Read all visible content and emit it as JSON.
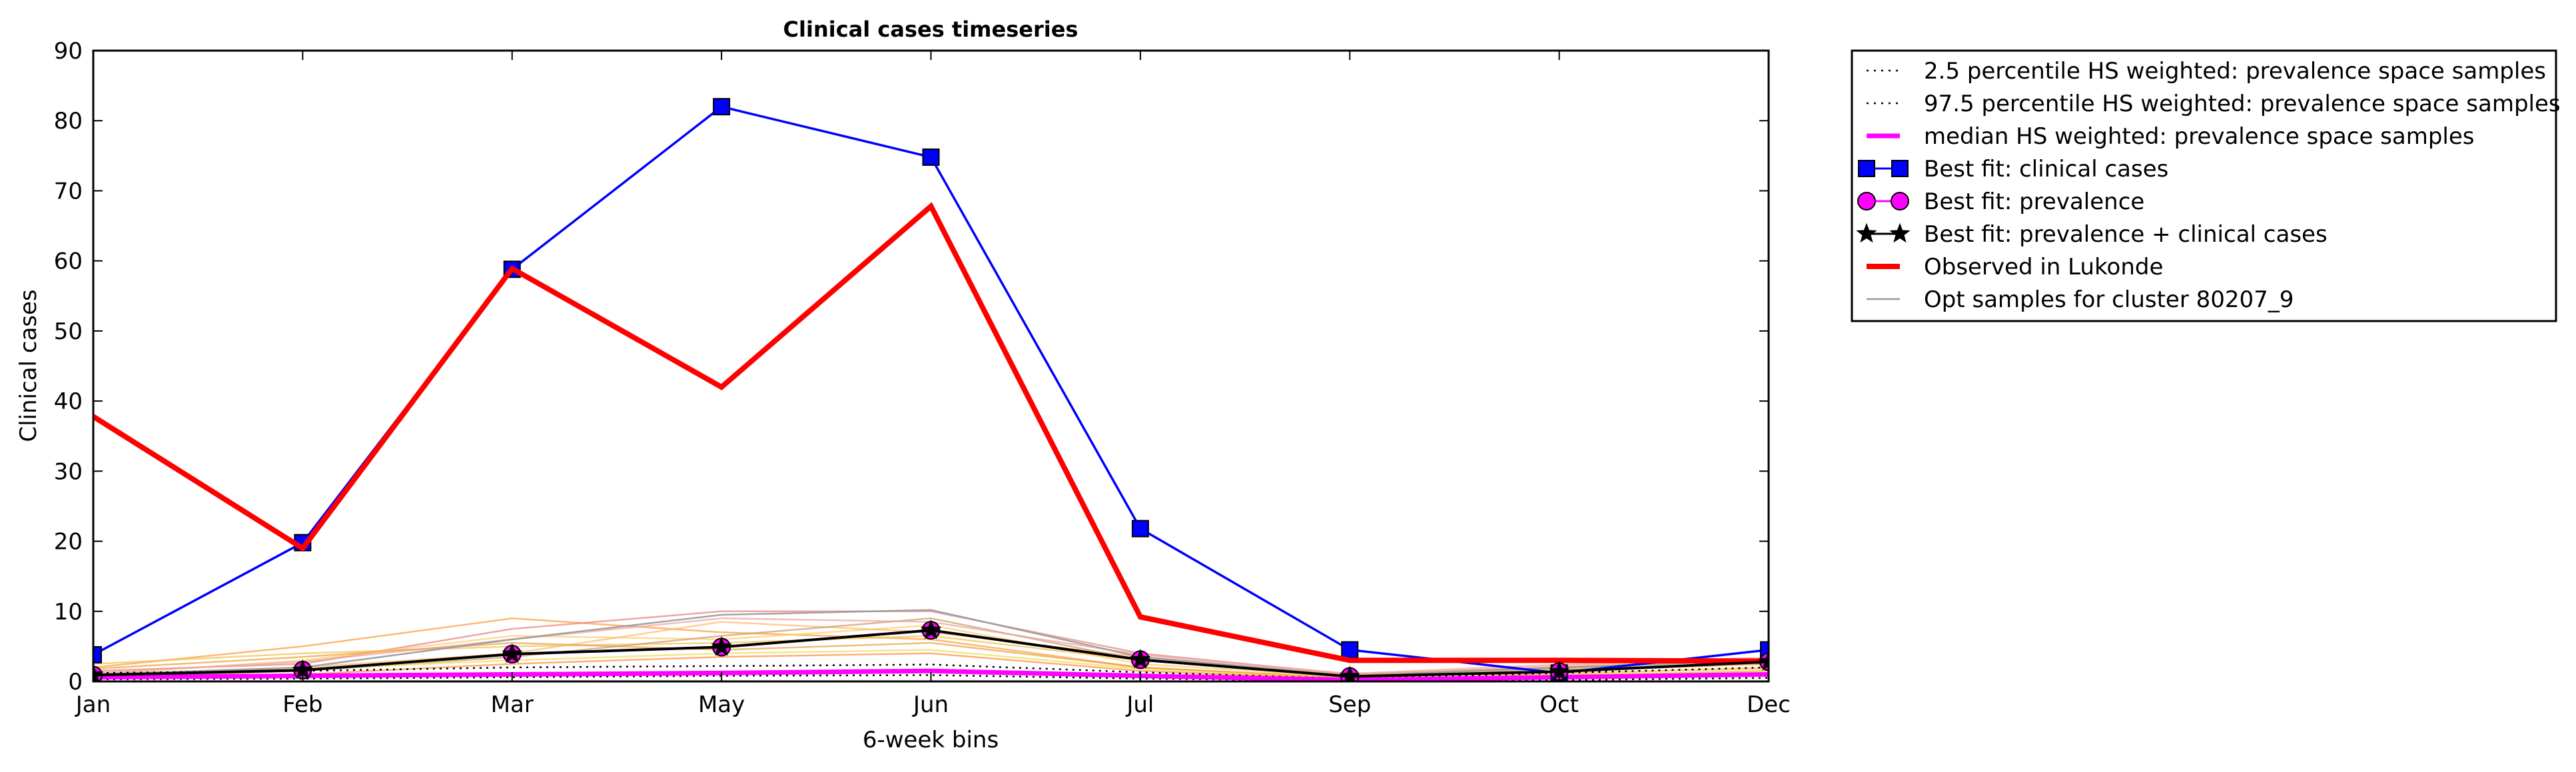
{
  "chart_data": {
    "type": "line",
    "title": "Clinical cases timeseries",
    "xlabel": "6-week bins",
    "ylabel": "Clinical cases",
    "categories": [
      "Jan",
      "Feb",
      "Mar",
      "May",
      "Jun",
      "Jul",
      "Sep",
      "Oct",
      "Dec"
    ],
    "ylim": [
      0,
      90
    ],
    "yticks": [
      0,
      10,
      20,
      30,
      40,
      50,
      60,
      70,
      80,
      90
    ],
    "grid": false,
    "legend_position": "outside-right",
    "series": [
      {
        "name": "2.5 percentile HS weighted: prevalence space samples",
        "style": "dotted",
        "color": "#000000",
        "values": [
          0.3,
          0.4,
          0.6,
          0.8,
          0.9,
          0.4,
          0.1,
          0.2,
          0.5
        ]
      },
      {
        "name": "97.5 percentile HS weighted: prevalence space samples",
        "style": "dotted",
        "color": "#000000",
        "values": [
          1.2,
          1.5,
          2.0,
          2.2,
          2.4,
          1.3,
          0.4,
          1.2,
          2.0
        ]
      },
      {
        "name": "median HS weighted: prevalence space samples",
        "style": "solid",
        "color": "#ff00ff",
        "values": [
          0.6,
          0.8,
          1.0,
          1.2,
          1.5,
          0.8,
          0.2,
          0.6,
          1.0
        ]
      },
      {
        "name": "Best fit: clinical cases",
        "style": "solid-square",
        "color": "#0000ff",
        "values": [
          3.8,
          19.8,
          58.8,
          82.0,
          74.8,
          21.8,
          4.5,
          1.2,
          4.5
        ]
      },
      {
        "name": "Best fit: prevalence",
        "style": "solid-circle",
        "color": "#ff00ff",
        "values": [
          0.9,
          1.6,
          3.9,
          4.9,
          7.3,
          3.1,
          0.7,
          1.4,
          2.8
        ]
      },
      {
        "name": "Best fit: prevalence + clinical cases",
        "style": "solid-star",
        "color": "#000000",
        "values": [
          0.9,
          1.6,
          3.9,
          4.9,
          7.3,
          3.1,
          0.7,
          1.4,
          2.8
        ]
      },
      {
        "name": "Observed in Lukonde",
        "style": "thick",
        "color": "#ff0000",
        "values": [
          37.8,
          19.0,
          58.9,
          42.0,
          67.8,
          9.2,
          3.0,
          3.0,
          2.9
        ]
      },
      {
        "name": "Opt samples for cluster 80207_9",
        "style": "thin",
        "color": "#999999",
        "values": [
          1.0,
          2.0,
          6.0,
          9.5,
          10.2,
          3.5,
          0.8,
          2.0,
          3.0
        ]
      }
    ],
    "sample_lines": [
      {
        "color": "#ff9933",
        "values": [
          2.0,
          5.0,
          9.0,
          7.0,
          6.0,
          2.0,
          0.5,
          1.5,
          2.5
        ]
      },
      {
        "color": "#e88080",
        "values": [
          1.5,
          2.5,
          7.5,
          10.0,
          10.0,
          4.0,
          1.0,
          2.0,
          3.0
        ]
      },
      {
        "color": "#f2c14e",
        "values": [
          2.5,
          4.0,
          5.0,
          5.5,
          6.5,
          3.0,
          0.8,
          1.0,
          2.0
        ]
      },
      {
        "color": "#ffcc66",
        "values": [
          1.0,
          3.0,
          6.5,
          6.0,
          8.0,
          2.5,
          0.6,
          1.2,
          1.8
        ]
      },
      {
        "color": "#ffb870",
        "values": [
          0.8,
          2.0,
          4.0,
          8.5,
          7.0,
          3.5,
          0.9,
          2.2,
          3.2
        ]
      },
      {
        "color": "#e8a040",
        "values": [
          1.8,
          3.5,
          5.5,
          4.5,
          5.5,
          2.0,
          0.4,
          0.8,
          1.5
        ]
      },
      {
        "color": "#cc9966",
        "values": [
          0.5,
          1.5,
          3.5,
          6.5,
          9.0,
          3.0,
          0.7,
          1.8,
          2.6
        ]
      },
      {
        "color": "#f0a0a0",
        "values": [
          1.2,
          2.8,
          6.0,
          9.0,
          8.5,
          3.8,
          1.1,
          2.4,
          3.4
        ]
      },
      {
        "color": "#eedd55",
        "values": [
          0.6,
          1.8,
          3.0,
          4.0,
          4.5,
          1.8,
          0.3,
          0.9,
          1.4
        ]
      },
      {
        "color": "#ff8c40",
        "values": [
          0.4,
          1.0,
          2.5,
          3.5,
          4.0,
          1.5,
          0.3,
          0.7,
          1.2
        ]
      }
    ]
  }
}
